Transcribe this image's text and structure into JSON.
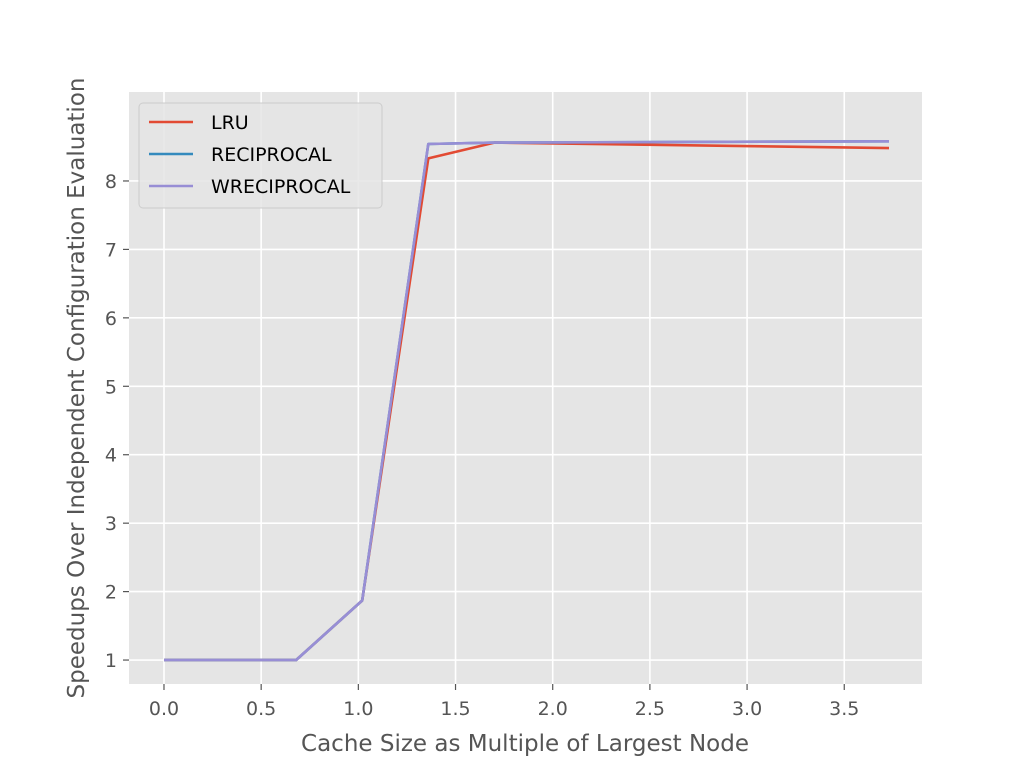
{
  "chart_data": {
    "type": "line",
    "title": "",
    "xlabel": "Cache Size as Multiple of Largest Node",
    "ylabel": "Speedups Over Independent Configuration Evaluation",
    "xlim": [
      -0.18,
      3.9
    ],
    "ylim": [
      0.65,
      9.3
    ],
    "xticks": [
      0.0,
      0.5,
      1.0,
      1.5,
      2.0,
      2.5,
      3.0,
      3.5
    ],
    "xtick_labels": [
      "0.0",
      "0.5",
      "1.0",
      "1.5",
      "2.0",
      "2.5",
      "3.0",
      "3.5"
    ],
    "yticks": [
      1,
      2,
      3,
      4,
      5,
      6,
      7,
      8
    ],
    "ytick_labels": [
      "1",
      "2",
      "3",
      "4",
      "5",
      "6",
      "7",
      "8"
    ],
    "grid": true,
    "legend_position": "top-left",
    "x": [
      0.0,
      0.68,
      1.02,
      1.36,
      1.7,
      3.73
    ],
    "series": [
      {
        "name": "LRU",
        "color": "#e24a33",
        "values": [
          1.0,
          1.0,
          1.87,
          8.33,
          8.56,
          8.48
        ]
      },
      {
        "name": "RECIPROCAL",
        "color": "#348abd",
        "values": [
          1.0,
          1.0,
          1.87,
          8.54,
          8.56,
          8.58
        ]
      },
      {
        "name": "WRECIPROCAL",
        "color": "#988ed5",
        "values": [
          1.0,
          1.0,
          1.87,
          8.54,
          8.56,
          8.58
        ]
      }
    ]
  }
}
